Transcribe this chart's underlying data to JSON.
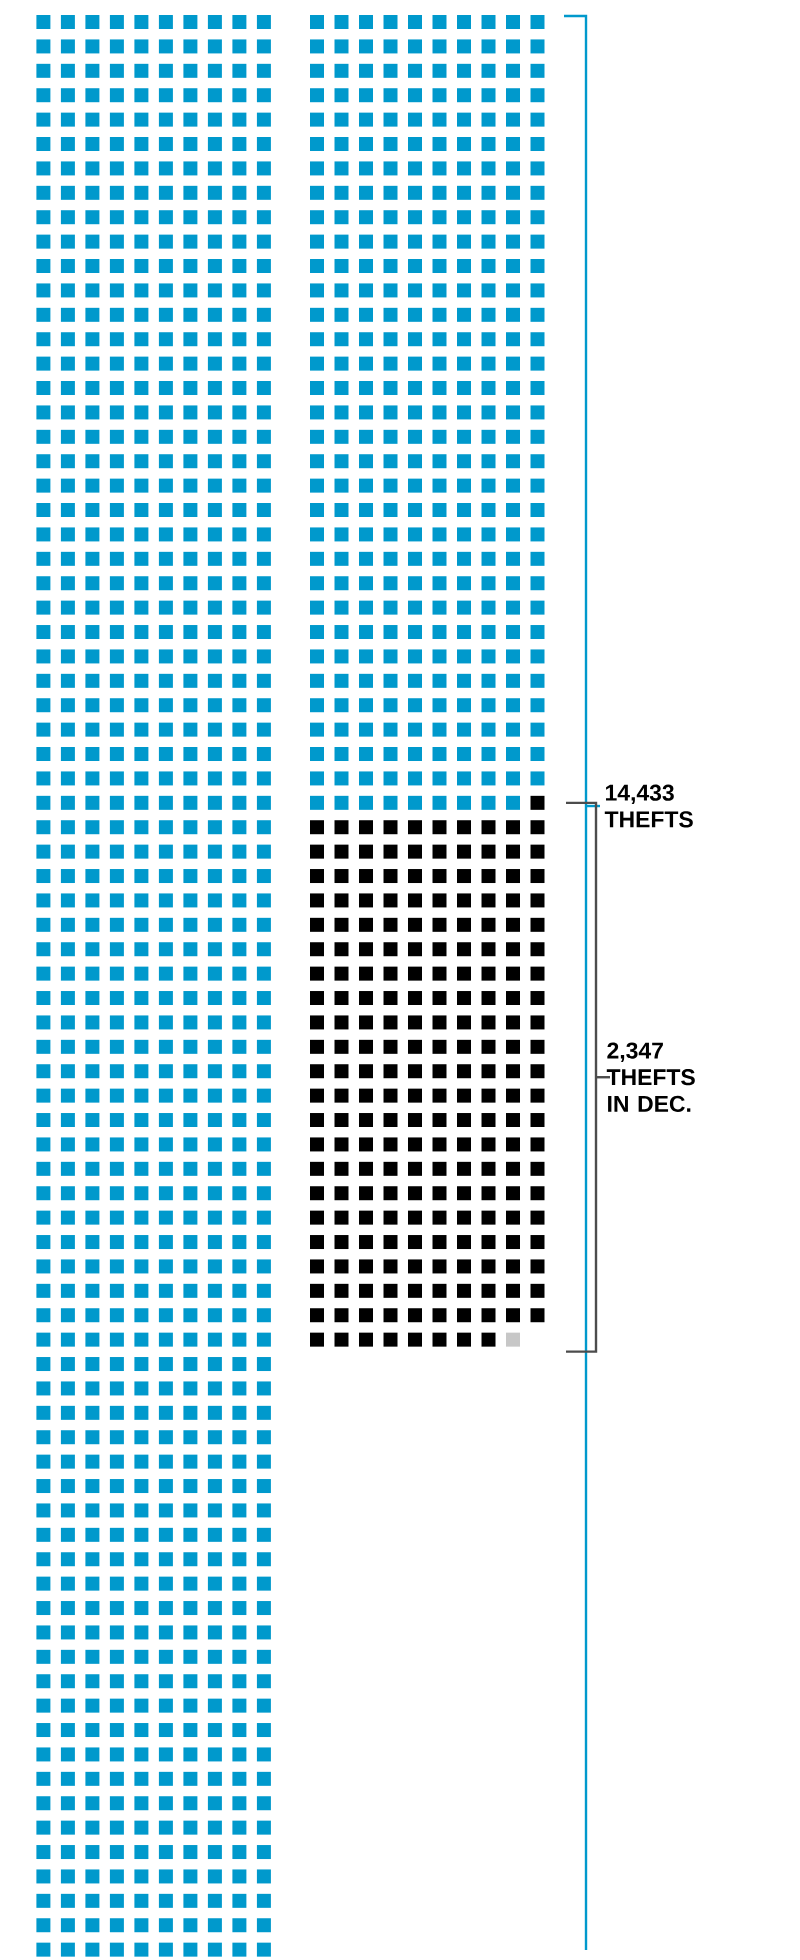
{
  "chart_data": {
    "type": "other",
    "categories": [
      "THEFTS",
      "THEFTS IN DEC."
    ],
    "values": [
      14433,
      2347
    ],
    "value_labels": [
      "14,433",
      "2,347"
    ],
    "colors": [
      "#0099cc",
      "#000000"
    ]
  }
}
